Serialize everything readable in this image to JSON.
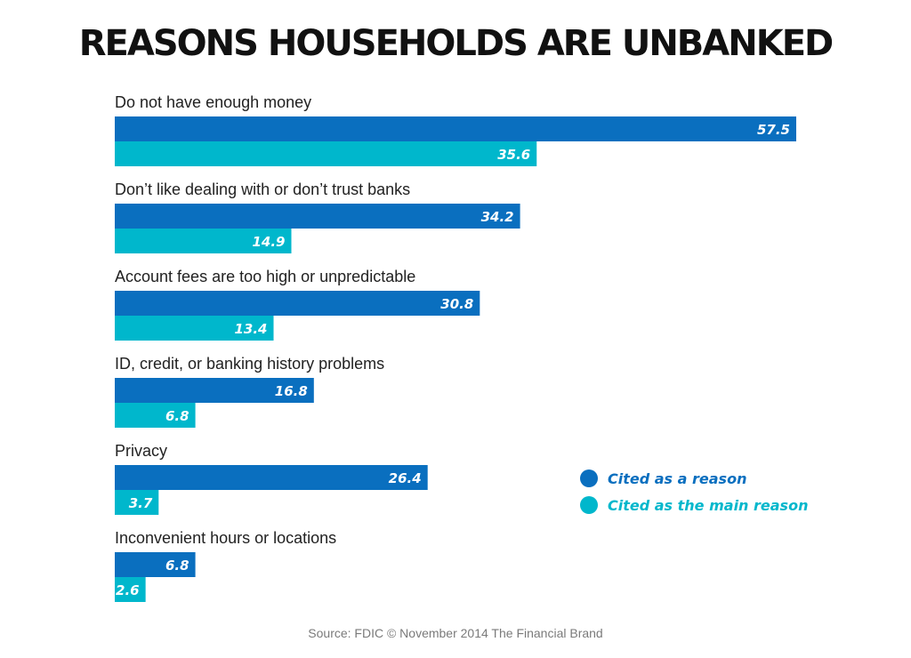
{
  "chart_data": {
    "type": "bar",
    "orientation": "horizontal",
    "title": "REASONS HOUSEHOLDS ARE UNBANKED",
    "categories": [
      "Do not have enough money",
      "Don’t like dealing with or don’t trust banks",
      "Account fees are too high or unpredictable",
      "ID, credit, or banking history problems",
      "Privacy",
      "Inconvenient hours or locations"
    ],
    "series": [
      {
        "name": "Cited as a reason",
        "color": "#0a6fbf",
        "values": [
          57.5,
          34.2,
          30.8,
          16.8,
          26.4,
          6.8
        ]
      },
      {
        "name": "Cited as the main reason",
        "color": "#00b7cc",
        "values": [
          35.6,
          14.9,
          13.4,
          6.8,
          3.7,
          2.6
        ]
      }
    ],
    "xlim": [
      0,
      57.5
    ],
    "grid": false,
    "legend_position": "right"
  },
  "source": "Source: FDIC © November 2014 The Financial Brand"
}
